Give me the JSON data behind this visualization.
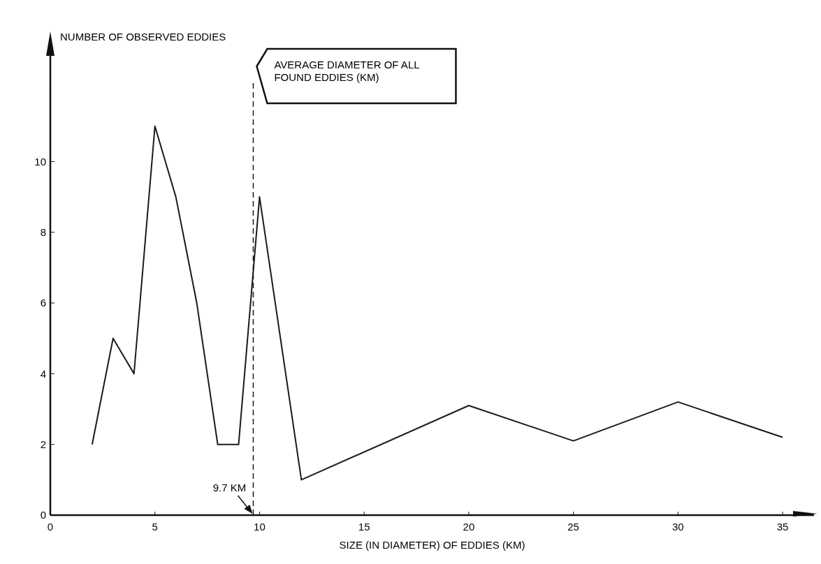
{
  "chart_data": {
    "type": "line",
    "xlabel": "SIZE (IN DIAMETER) OF EDDIES (KM)",
    "ylabel": "NUMBER OF OBSERVED EDDIES",
    "x": [
      2,
      3,
      4,
      5,
      6,
      7,
      8,
      9,
      10,
      12,
      20,
      25,
      30,
      35
    ],
    "series": [
      {
        "color": "#1a1a1a",
        "values": [
          2,
          5,
          4,
          11,
          9,
          6,
          2,
          2,
          9,
          1,
          3.1,
          2.1,
          3.2,
          2.2
        ]
      }
    ],
    "xlim": [
      0,
      36.5
    ],
    "xticks": [
      0,
      5,
      10,
      15,
      20,
      25,
      30,
      35
    ],
    "ylim": [
      0,
      12.2
    ],
    "yticks": [
      0,
      2,
      4,
      6,
      8,
      10
    ],
    "ref_lines": [
      {
        "axis": "x",
        "value": 9.7,
        "label": "AVERAGE DIAMETER OF ALL FOUND EDDIES (KM)",
        "line_style": "dashed",
        "color": "#1a1a1a"
      }
    ],
    "annotations": [
      {
        "text": "9.7 KM",
        "x": 9.7,
        "y": 0
      }
    ],
    "marker": "none",
    "line_style": "solid"
  }
}
